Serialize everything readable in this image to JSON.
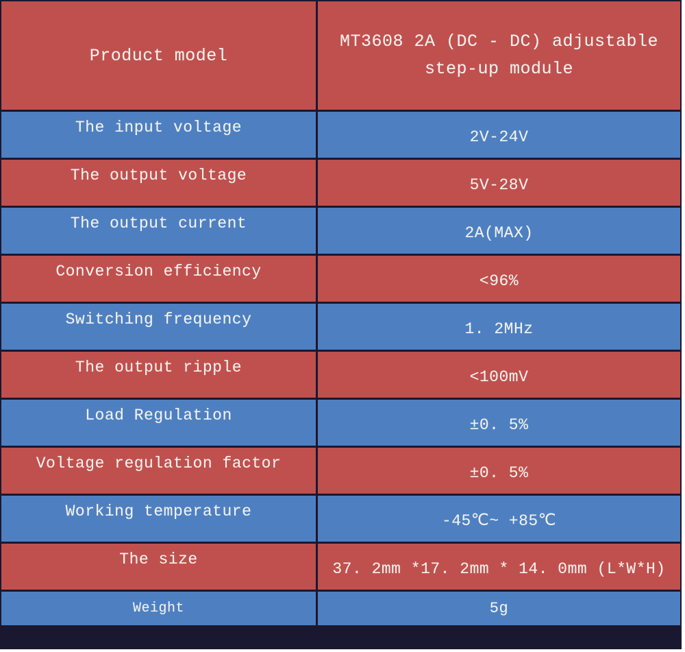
{
  "colors": {
    "red": "#c0504e",
    "blue": "#4e80c1",
    "border": "#1a1830",
    "text": "#f4f2ee",
    "page_bg": "#ffffff"
  },
  "rows": [
    {
      "label": "Product model",
      "value": "MT3608 2A (DC - DC) adjustable step-up module",
      "color": "red"
    },
    {
      "label": "The input voltage",
      "value": "2V-24V",
      "color": "blue"
    },
    {
      "label": "The output voltage",
      "value": "5V-28V",
      "color": "red"
    },
    {
      "label": "The output current",
      "value": "2A(MAX)",
      "color": "blue"
    },
    {
      "label": "Conversion efficiency",
      "value": "<96%",
      "color": "red"
    },
    {
      "label": "Switching frequency",
      "value": "1. 2MHz",
      "color": "blue"
    },
    {
      "label": "The output ripple",
      "value": "<100mV",
      "color": "red"
    },
    {
      "label": "Load Regulation",
      "value": "±0. 5%",
      "color": "blue"
    },
    {
      "label": "Voltage regulation factor",
      "value": "±0. 5%",
      "color": "red"
    },
    {
      "label": "Working temperature",
      "value": "-45℃~ +85℃",
      "color": "blue"
    },
    {
      "label": "The size",
      "value": "37. 2mm *17. 2mm * 14. 0mm (L*W*H)",
      "color": "red"
    },
    {
      "label": "Weight",
      "value": "5g",
      "color": "blue"
    }
  ]
}
